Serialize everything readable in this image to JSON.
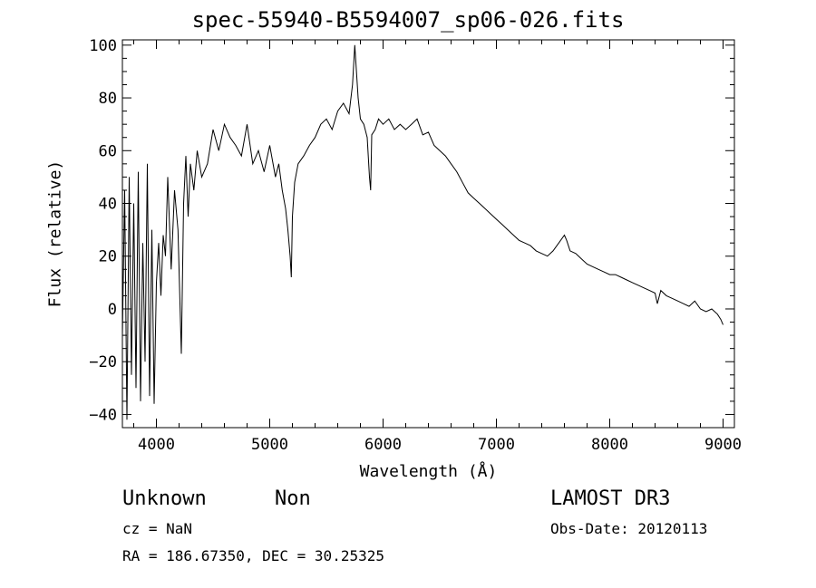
{
  "chart_data": {
    "type": "line",
    "title": "spec-55940-B5594007_sp06-026.fits",
    "xlabel": "Wavelength (Å)",
    "ylabel": "Flux (relative)",
    "xlim": [
      3700,
      9100
    ],
    "ylim": [
      -45,
      102
    ],
    "xticks": [
      4000,
      5000,
      6000,
      7000,
      8000,
      9000
    ],
    "yticks": [
      -40,
      -20,
      0,
      20,
      40,
      60,
      80,
      100
    ],
    "grid": false,
    "series": [
      {
        "x": [
          3700,
          3720,
          3740,
          3760,
          3780,
          3800,
          3820,
          3840,
          3860,
          3880,
          3900,
          3920,
          3940,
          3960,
          3980,
          4000,
          4020,
          4040,
          4060,
          4080,
          4100,
          4130,
          4160,
          4190,
          4220,
          4240,
          4260,
          4280,
          4300,
          4330,
          4360,
          4400,
          4450,
          4500,
          4550,
          4600,
          4650,
          4700,
          4750,
          4800,
          4850,
          4900,
          4950,
          5000,
          5050,
          5080,
          5110,
          5140,
          5160,
          5180,
          5190,
          5200,
          5220,
          5250,
          5300,
          5350,
          5400,
          5450,
          5500,
          5550,
          5600,
          5650,
          5700,
          5730,
          5750,
          5780,
          5800,
          5830,
          5860,
          5880,
          5890,
          5900,
          5930,
          5960,
          6000,
          6050,
          6100,
          6150,
          6200,
          6250,
          6300,
          6350,
          6400,
          6450,
          6500,
          6550,
          6600,
          6650,
          6700,
          6750,
          6800,
          6850,
          6900,
          6950,
          7000,
          7050,
          7100,
          7150,
          7200,
          7250,
          7300,
          7350,
          7400,
          7450,
          7500,
          7550,
          7600,
          7620,
          7650,
          7700,
          7750,
          7800,
          7850,
          7900,
          7950,
          8000,
          8050,
          8100,
          8150,
          8200,
          8250,
          8300,
          8350,
          8400,
          8420,
          8450,
          8500,
          8550,
          8600,
          8650,
          8700,
          8750,
          8800,
          8850,
          8900,
          8950,
          8980,
          9000
        ],
        "y": [
          -10,
          45,
          -42,
          50,
          -25,
          40,
          -30,
          52,
          -35,
          25,
          -20,
          55,
          -33,
          30,
          -36,
          10,
          25,
          5,
          28,
          20,
          50,
          15,
          45,
          30,
          -17,
          40,
          58,
          35,
          55,
          45,
          60,
          50,
          55,
          68,
          60,
          70,
          65,
          62,
          58,
          70,
          55,
          60,
          52,
          62,
          50,
          55,
          45,
          38,
          30,
          20,
          12,
          35,
          48,
          55,
          58,
          62,
          65,
          70,
          72,
          68,
          75,
          78,
          74,
          85,
          100,
          80,
          72,
          70,
          65,
          50,
          45,
          66,
          68,
          72,
          70,
          72,
          68,
          70,
          68,
          70,
          72,
          66,
          67,
          62,
          60,
          58,
          55,
          52,
          48,
          44,
          42,
          40,
          38,
          36,
          34,
          32,
          30,
          28,
          26,
          25,
          24,
          22,
          21,
          20,
          22,
          25,
          28,
          26,
          22,
          21,
          19,
          17,
          16,
          15,
          14,
          13,
          13,
          12,
          11,
          10,
          9,
          8,
          7,
          6,
          2,
          7,
          5,
          4,
          3,
          2,
          1,
          3,
          0,
          -1,
          0,
          -2,
          -4,
          -6
        ]
      }
    ]
  },
  "info": {
    "object_type": "Unknown",
    "object_class": "Non",
    "survey": "LAMOST DR3",
    "cz": "cz = NaN",
    "obs_date": "Obs-Date: 20120113",
    "coords": "RA = 186.67350, DEC =  30.25325"
  }
}
